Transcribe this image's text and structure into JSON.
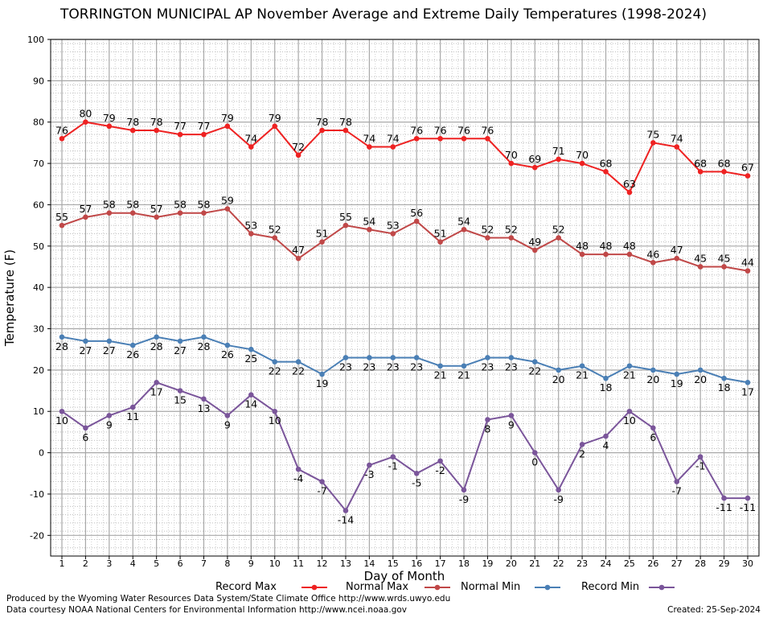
{
  "chart_data": {
    "type": "line",
    "title": "TORRINGTON MUNICIPAL AP November Average and Extreme Daily Temperatures (1998-2024)",
    "xlabel": "Day of Month",
    "ylabel": "Temperature (F)",
    "ylim": [
      -25,
      100
    ],
    "yticks": [
      -20,
      -10,
      0,
      10,
      20,
      30,
      40,
      50,
      60,
      70,
      80,
      90,
      100
    ],
    "x": [
      1,
      2,
      3,
      4,
      5,
      6,
      7,
      8,
      9,
      10,
      11,
      12,
      13,
      14,
      15,
      16,
      17,
      18,
      19,
      20,
      21,
      22,
      23,
      24,
      25,
      26,
      27,
      28,
      29,
      30
    ],
    "grid": true,
    "legend_placement": "bottom",
    "series": [
      {
        "name": "Record Max",
        "color": "#ee2222",
        "label_position": "above",
        "values": [
          76,
          80,
          79,
          78,
          78,
          77,
          77,
          79,
          74,
          79,
          72,
          78,
          78,
          74,
          74,
          76,
          76,
          76,
          76,
          70,
          69,
          71,
          70,
          68,
          63,
          75,
          74,
          68,
          68,
          67
        ]
      },
      {
        "name": "Normal Max",
        "color": "#c04848",
        "label_position": "above",
        "values": [
          55,
          57,
          58,
          58,
          57,
          58,
          58,
          59,
          53,
          52,
          47,
          51,
          55,
          54,
          53,
          56,
          51,
          54,
          52,
          52,
          49,
          52,
          48,
          48,
          48,
          46,
          47,
          45,
          45,
          44
        ]
      },
      {
        "name": "Normal Min",
        "color": "#4a7fb5",
        "label_position": "below",
        "values": [
          28,
          27,
          27,
          26,
          28,
          27,
          28,
          26,
          25,
          22,
          22,
          19,
          23,
          23,
          23,
          23,
          21,
          21,
          23,
          23,
          22,
          20,
          21,
          18,
          21,
          20,
          19,
          20,
          18,
          17
        ]
      },
      {
        "name": "Record Min",
        "color": "#7a559a",
        "label_position": "below",
        "values": [
          10,
          6,
          9,
          11,
          17,
          15,
          13,
          9,
          14,
          10,
          -4,
          -7,
          -14,
          -3,
          -1,
          -5,
          -2,
          -9,
          8,
          9,
          0,
          -9,
          2,
          4,
          10,
          6,
          -7,
          -1,
          -11,
          -11
        ]
      }
    ]
  },
  "footer": {
    "produced_by": "Produced by the Wyoming Water Resources Data System/State Climate Office http://www.wrds.uwyo.edu",
    "courtesy": "Data courtesy NOAA National Centers for Environmental Information http://www.ncei.noaa.gov",
    "created": "Created:  25-Sep-2024"
  }
}
